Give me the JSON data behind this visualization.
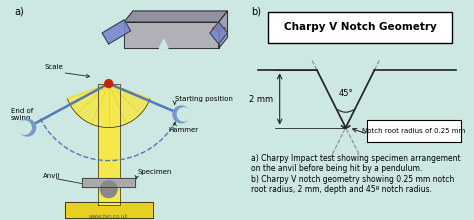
{
  "bg_color": "#cde8e2",
  "panel_a_label": "a)",
  "panel_b_label": "b)",
  "title": "Charpy V Notch Geometry",
  "label_2mm": "2 mm",
  "label_45": "45°",
  "label_notch": "Notch root radius of 0.25 mm",
  "caption_a": "a) Charpy Impact test showing specimen arrangement\non the anvil before being hit by a pendulum.",
  "caption_b": "b) Charpy V notch geometry showing 0.25 mm notch\nroot radius, 2 mm, depth and 45º notch radius.",
  "watermark": "www.twi.co.uk",
  "line_color": "#222222",
  "dashed_color": "#888888",
  "yellow_light": "#f5e84a",
  "yellow_base": "#e8d020",
  "blue_arm": "#5577bb",
  "blue_hammer": "#7799cc",
  "grey_specimen": "#999999",
  "grey_block": "#aaaaaa",
  "pivot_color": "#cc2200",
  "notch_diagram_bg": "#ffffff"
}
